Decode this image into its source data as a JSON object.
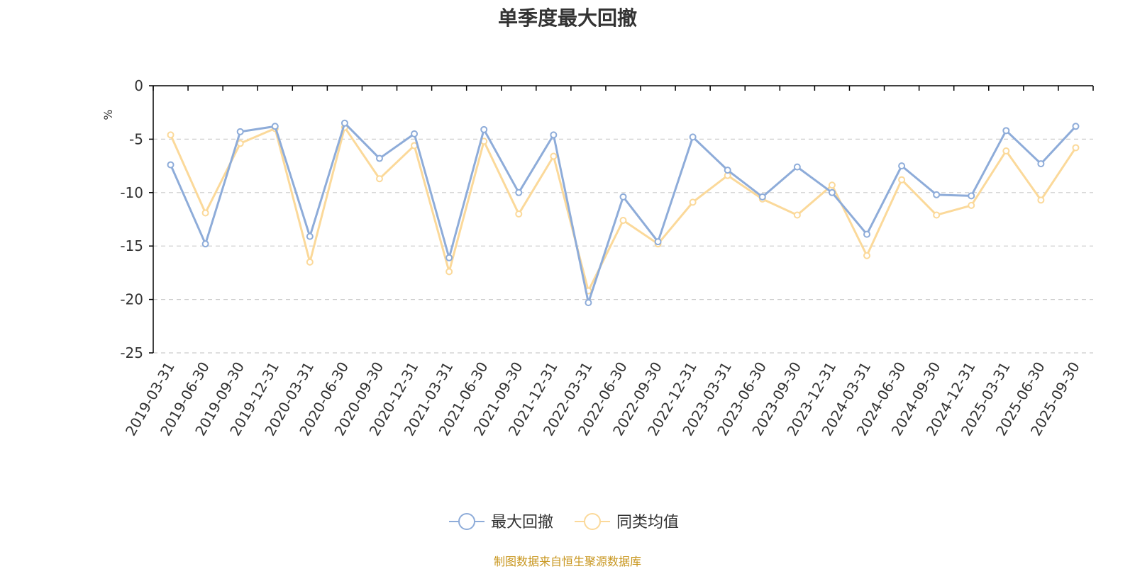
{
  "title": "单季度最大回撤",
  "source": "制图数据来自恒生聚源数据库",
  "colors": {
    "source": "#c8961e",
    "unit": "#e02020",
    "axis": "#000000",
    "grid": "#cccccc"
  },
  "chart_data": {
    "type": "line",
    "title": "单季度最大回撤",
    "ylabel": "%",
    "ylim": [
      -25,
      0
    ],
    "yticks": [
      0,
      -5,
      -10,
      -15,
      -20,
      -25
    ],
    "grid": "horizontal dashed",
    "legend_position": "bottom-center",
    "categories": [
      "2019-03-31",
      "2019-06-30",
      "2019-09-30",
      "2019-12-31",
      "2020-03-31",
      "2020-06-30",
      "2020-09-30",
      "2020-12-31",
      "2021-03-31",
      "2021-06-30",
      "2021-09-30",
      "2021-12-31",
      "2022-03-31",
      "2022-06-30",
      "2022-09-30",
      "2022-12-31",
      "2023-03-31",
      "2023-06-30",
      "2023-09-30",
      "2023-12-31",
      "2024-03-31",
      "2024-06-30",
      "2024-09-30",
      "2024-12-31",
      "2025-03-31",
      "2025-06-30",
      "2025-09-30"
    ],
    "series": [
      {
        "name": "最大回撤",
        "color": "#8eacd9",
        "values": [
          -7.4,
          -14.8,
          -4.3,
          -3.8,
          -14.1,
          -3.5,
          -6.8,
          -4.5,
          -16.1,
          -4.1,
          -10.0,
          -4.6,
          -20.3,
          -10.4,
          -14.6,
          -4.8,
          -7.9,
          -10.4,
          -7.6,
          -10.0,
          -13.9,
          -7.5,
          -10.2,
          -10.3,
          -4.2,
          -7.3,
          -3.8
        ]
      },
      {
        "name": "同类均值",
        "color": "#fbd99a",
        "values": [
          -4.6,
          -11.9,
          -5.4,
          -4.0,
          -16.5,
          -3.9,
          -8.7,
          -5.6,
          -17.4,
          -5.2,
          -12.0,
          -6.6,
          -19.2,
          -12.6,
          -14.8,
          -10.9,
          -8.4,
          -10.6,
          -12.1,
          -9.3,
          -15.9,
          -8.8,
          -12.1,
          -11.2,
          -6.1,
          -10.7,
          -5.8
        ]
      }
    ]
  }
}
